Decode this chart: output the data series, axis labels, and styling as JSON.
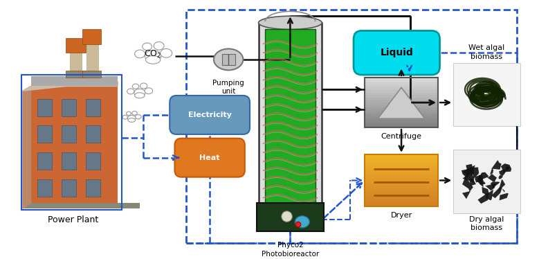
{
  "bg_color": "#ffffff",
  "labels": {
    "power_plant": "Power Plant",
    "co2": "CO$_2$",
    "pumping": "Pumping\nunit",
    "electricity": "Electricity",
    "heat": "Heat",
    "pbr": "Phyco2\nPhotobioreactor",
    "liquid": "Liquid",
    "centrifuge": "Centrifuge",
    "dryer": "Dryer",
    "wet_algal": "Wet algal\nbiomass",
    "dry_algal": "Dry algal\nbiomass"
  },
  "colors": {
    "blue_dash": "#2255cc",
    "black": "#111111",
    "elec_face": "#6699bb",
    "elec_edge": "#3366aa",
    "heat_face": "#e07820",
    "heat_edge": "#cc5500",
    "liquid_face": "#00ddee",
    "liquid_edge": "#009999",
    "green_pbr": "#22aa22",
    "dark_green": "#115511",
    "gray_centrifuge": "#aaaaaa",
    "orange_dryer": "#e09040"
  }
}
